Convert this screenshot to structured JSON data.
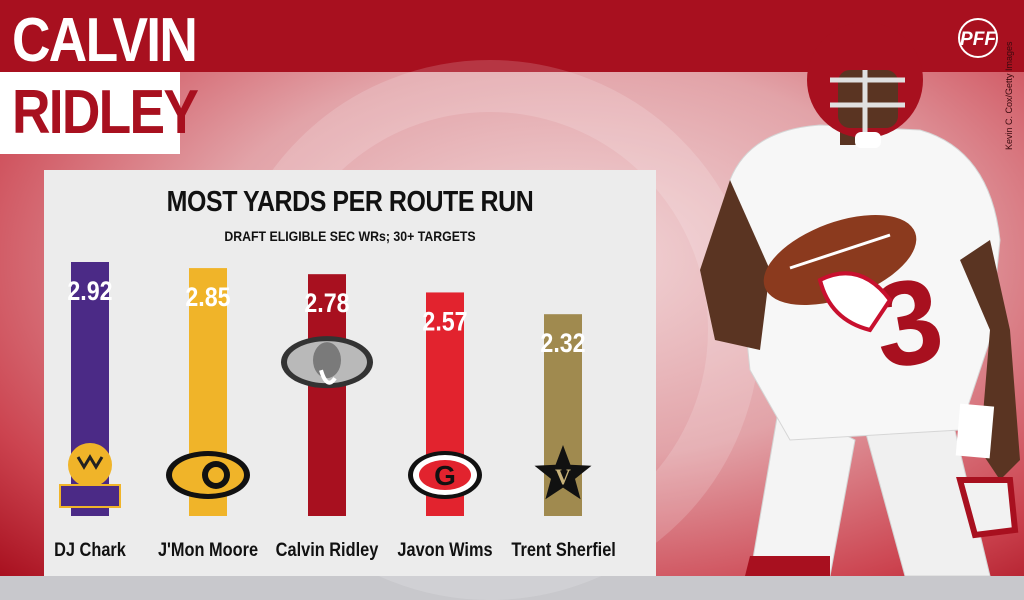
{
  "header": {
    "title_line1": "CALVIN",
    "title_line2": "RIDLEY",
    "logo_text": "PFF",
    "photo_credit": "Kevin C. Cox/Getty Images"
  },
  "colors": {
    "accent_red": "#a8101f",
    "panel_bg": "#ececec"
  },
  "chart_data": {
    "type": "bar",
    "title": "MOST YARDS PER ROUTE RUN",
    "subtitle": "DRAFT ELIGIBLE SEC WRs; 30+ TARGETS",
    "categories": [
      "DJ Chark",
      "J'Mon Moore",
      "Calvin Ridley",
      "Javon Wims",
      "Trent Sherfiel"
    ],
    "values": [
      2.92,
      2.85,
      2.78,
      2.57,
      2.32
    ],
    "value_labels": [
      "2.92",
      "2.85",
      "2.78",
      "2.57",
      "2.32"
    ],
    "bar_colors": [
      "#4b2a86",
      "#f0b429",
      "#a8101f",
      "#e2232e",
      "#a08a4f"
    ],
    "team_icons": [
      "lsu-tiger-icon",
      "missouri-tiger-icon",
      "alabama-elephant-icon",
      "georgia-g-icon",
      "vanderbilt-v-icon"
    ],
    "xlabel": "",
    "ylabel": "",
    "grid": false
  }
}
